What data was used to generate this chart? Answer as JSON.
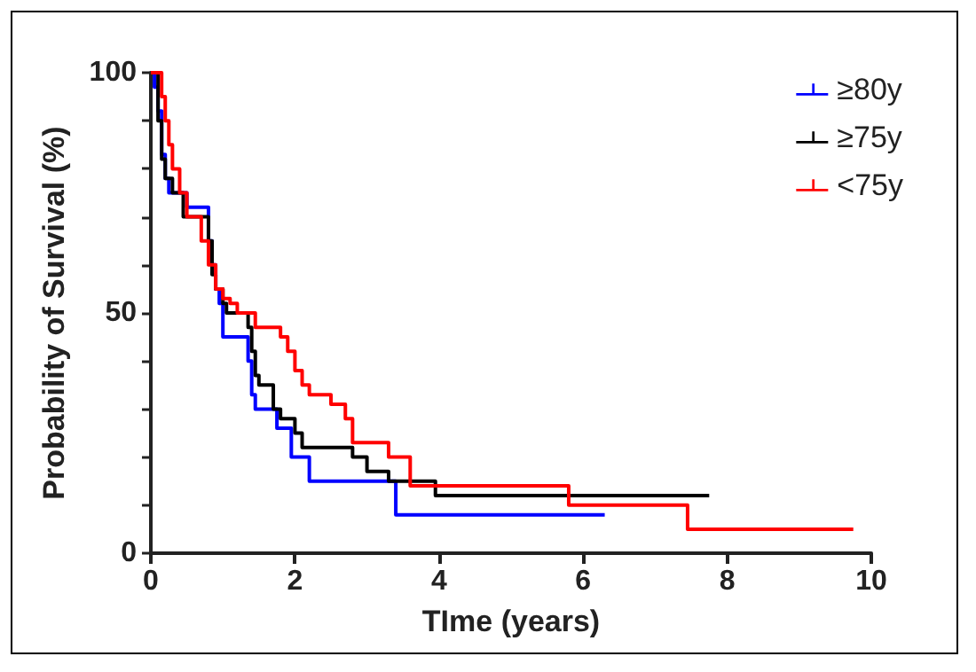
{
  "chart_data": {
    "type": "step",
    "xlabel": "TIme (years)",
    "ylabel": "Probability of Survival (%)",
    "xlim": [
      0,
      10
    ],
    "xticks": [
      0,
      2,
      4,
      6,
      8,
      10
    ],
    "ylim": [
      0,
      100
    ],
    "yticks": [
      0,
      {
        "value": 10,
        "label": null
      },
      {
        "value": 20,
        "label": null
      },
      {
        "value": 30,
        "label": null
      },
      {
        "value": 40,
        "label": null
      },
      50,
      {
        "value": 60,
        "label": null
      },
      {
        "value": 70,
        "label": null
      },
      {
        "value": 80,
        "label": null
      },
      {
        "value": 90,
        "label": null
      },
      100
    ],
    "grid": false,
    "legend": "top right",
    "marker": "none",
    "line_style": "solid",
    "series": [
      {
        "name": "≥80y",
        "color": "#0000ff",
        "x": [
          0,
          0.05,
          0.1,
          0.15,
          0.2,
          0.25,
          0.5,
          0.8,
          0.85,
          0.9,
          0.95,
          1.0,
          1.35,
          1.4,
          1.45,
          1.75,
          1.95,
          2.2,
          3.4,
          6.3
        ],
        "values": [
          100,
          97,
          92,
          83,
          78,
          75,
          72,
          65,
          60,
          55,
          52,
          45,
          40,
          33,
          30,
          26,
          20,
          15,
          8,
          8
        ]
      },
      {
        "name": "≥75y",
        "color": "#000000",
        "x": [
          0,
          0.1,
          0.15,
          0.2,
          0.3,
          0.45,
          0.8,
          0.85,
          0.9,
          1.0,
          1.05,
          1.35,
          1.4,
          1.45,
          1.5,
          1.7,
          1.8,
          2.0,
          2.1,
          2.8,
          3.0,
          3.3,
          3.95,
          7.75
        ],
        "values": [
          100,
          90,
          82,
          78,
          75,
          70,
          65,
          58,
          55,
          52,
          50,
          47,
          42,
          37,
          35,
          30,
          28,
          25,
          22,
          20,
          17,
          15,
          12,
          12
        ]
      },
      {
        "name": "<75y",
        "color": "#ff0000",
        "x": [
          0,
          0.15,
          0.2,
          0.25,
          0.3,
          0.4,
          0.5,
          0.7,
          0.8,
          0.9,
          1.0,
          1.1,
          1.2,
          1.45,
          1.8,
          1.9,
          2.0,
          2.1,
          2.2,
          2.5,
          2.7,
          2.8,
          3.3,
          3.6,
          5.8,
          7.45,
          9.75
        ],
        "values": [
          100,
          95,
          90,
          85,
          80,
          75,
          70,
          65,
          60,
          55,
          53,
          52,
          50,
          47,
          45,
          42,
          38,
          35,
          33,
          31,
          28,
          23,
          20,
          14,
          10,
          5,
          5
        ]
      }
    ]
  }
}
